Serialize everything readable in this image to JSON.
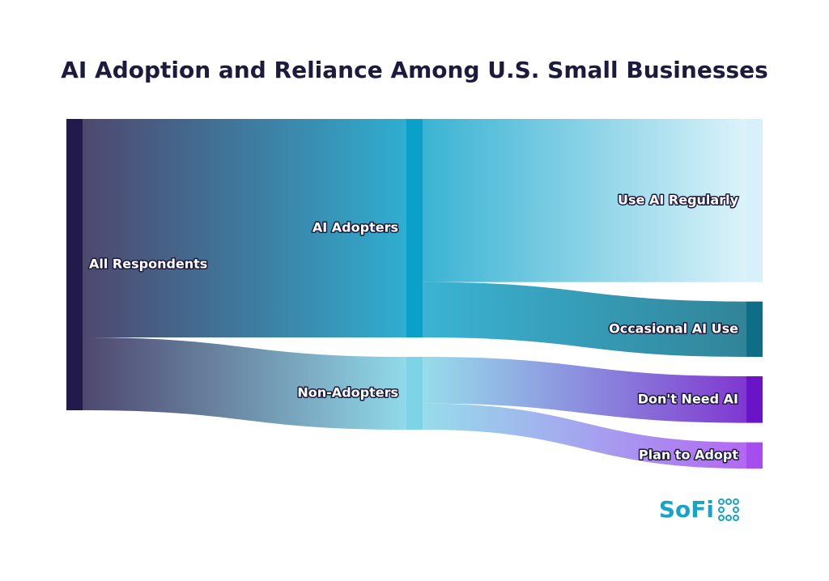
{
  "chart_data": {
    "type": "sankey",
    "title": "AI Adoption and Reliance Among U.S. Small Businesses",
    "nodes": [
      {
        "name": "All Respondents",
        "color": "#221a4a"
      },
      {
        "name": "AI Adopters",
        "color": "#0aa0c8"
      },
      {
        "name": "Non-Adopters",
        "color": "#7dd4e6"
      },
      {
        "name": "Use AI Regularly",
        "color": "#d6f1f9"
      },
      {
        "name": "Occasional AI Use",
        "color": "#0d6e86"
      },
      {
        "name": "Don't Need AI",
        "color": "#6a14c8"
      },
      {
        "name": "Plan to Adopt",
        "color": "#a64df0"
      }
    ],
    "links": [
      {
        "source": 0,
        "target": 1,
        "value": 75
      },
      {
        "source": 0,
        "target": 2,
        "value": 25
      },
      {
        "source": 1,
        "target": 3,
        "value": 56
      },
      {
        "source": 1,
        "target": 4,
        "value": 19
      },
      {
        "source": 2,
        "target": 5,
        "value": 16
      },
      {
        "source": 2,
        "target": 6,
        "value": 9
      }
    ]
  },
  "brand": "SoFi"
}
